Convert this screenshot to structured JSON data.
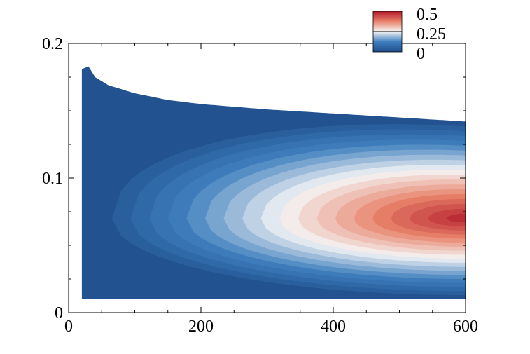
{
  "chart_data": {
    "type": "heatmap",
    "title": "",
    "xlabel": "",
    "ylabel": "",
    "xlim": [
      0,
      600
    ],
    "ylim": [
      0,
      0.2
    ],
    "x_ticks": [
      {
        "value": 0,
        "label": "0"
      },
      {
        "value": 200,
        "label": "200"
      },
      {
        "value": 400,
        "label": "400"
      },
      {
        "value": 600,
        "label": "600"
      }
    ],
    "y_ticks": [
      {
        "value": 0,
        "label": "0"
      },
      {
        "value": 0.1,
        "label": "0.1"
      },
      {
        "value": 0.2,
        "label": "0.2"
      }
    ],
    "colorbar": {
      "min": 0,
      "max": 0.5,
      "labels": [
        {
          "value": 0.5,
          "label": "0.5"
        },
        {
          "value": 0.25,
          "label": "0.25"
        },
        {
          "value": 0,
          "label": "0"
        }
      ],
      "colors": [
        "#1f4e8c",
        "#3f7fbf",
        "#f5f5f5",
        "#e8826a",
        "#b2182b"
      ]
    },
    "field": {
      "x_start": 20,
      "x_end": 600,
      "peak": {
        "x": 600,
        "y": 0.07,
        "value": 0.5
      },
      "y_bottom": 0.01,
      "top_boundary": [
        {
          "x": 20,
          "y": 0.181
        },
        {
          "x": 30,
          "y": 0.183
        },
        {
          "x": 40,
          "y": 0.175
        },
        {
          "x": 60,
          "y": 0.169
        },
        {
          "x": 100,
          "y": 0.163
        },
        {
          "x": 150,
          "y": 0.158
        },
        {
          "x": 200,
          "y": 0.155
        },
        {
          "x": 300,
          "y": 0.151
        },
        {
          "x": 400,
          "y": 0.148
        },
        {
          "x": 500,
          "y": 0.145
        },
        {
          "x": 600,
          "y": 0.142
        }
      ],
      "contour_levels": 20
    }
  }
}
